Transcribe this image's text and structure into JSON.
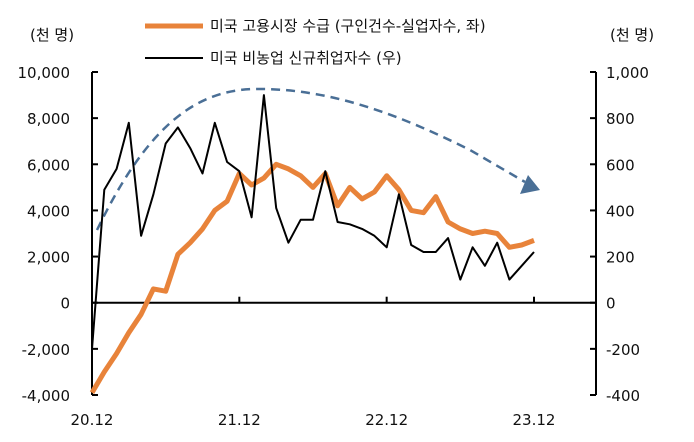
{
  "chart_data": {
    "type": "line",
    "left_unit": "(천 명)",
    "right_unit": "(천 명)",
    "left_axis": {
      "range": [
        -4000,
        10000
      ],
      "ticks": [
        -4000,
        -2000,
        0,
        2000,
        4000,
        6000,
        8000,
        10000
      ],
      "tick_labels": [
        "-4,000",
        "-2,000",
        "0",
        "2,000",
        "4,000",
        "6,000",
        "8,000",
        "10,000"
      ]
    },
    "right_axis": {
      "range": [
        -400,
        1000
      ],
      "ticks": [
        -400,
        -200,
        0,
        200,
        400,
        600,
        800,
        1000
      ],
      "tick_labels": [
        "-400",
        "-200",
        "0",
        "200",
        "400",
        "600",
        "800",
        "1,000"
      ]
    },
    "x_tick_labels": [
      "20.12",
      "21.12",
      "22.12",
      "23.12"
    ],
    "x": [
      "20.12",
      "21.01",
      "21.02",
      "21.03",
      "21.04",
      "21.05",
      "21.06",
      "21.07",
      "21.08",
      "21.09",
      "21.10",
      "21.11",
      "21.12",
      "22.01",
      "22.02",
      "22.03",
      "22.04",
      "22.05",
      "22.06",
      "22.07",
      "22.08",
      "22.09",
      "22.10",
      "22.11",
      "22.12",
      "23.01",
      "23.02",
      "23.03",
      "23.04",
      "23.05",
      "23.06",
      "23.07",
      "23.08",
      "23.09",
      "23.10",
      "23.11",
      "23.12"
    ],
    "series": [
      {
        "name": "미국 고용시장 수급 (구인건수-실업자수, 좌)",
        "axis": "left",
        "color": "#E8833A",
        "values": [
          -3900,
          -3000,
          -2200,
          -1300,
          -500,
          600,
          500,
          2100,
          2600,
          3200,
          4000,
          4400,
          5600,
          5100,
          5400,
          6000,
          5800,
          5500,
          5000,
          5600,
          4200,
          5000,
          4500,
          4800,
          5500,
          4900,
          4000,
          3900,
          4600,
          3500,
          3200,
          3000,
          3100,
          3000,
          2400,
          2500,
          2700
        ]
      },
      {
        "name": "미국 비농업 신규취업자수 (우)",
        "axis": "right",
        "color": "#000000",
        "values": [
          -200,
          490,
          580,
          780,
          290,
          470,
          690,
          760,
          670,
          560,
          780,
          610,
          570,
          370,
          900,
          410,
          260,
          360,
          360,
          570,
          350,
          340,
          320,
          290,
          240,
          470,
          250,
          220,
          220,
          280,
          100,
          240,
          160,
          260,
          100,
          160,
          220
        ]
      }
    ],
    "trend_arrow_color": "#4A6F96",
    "legend_placement": "top"
  }
}
